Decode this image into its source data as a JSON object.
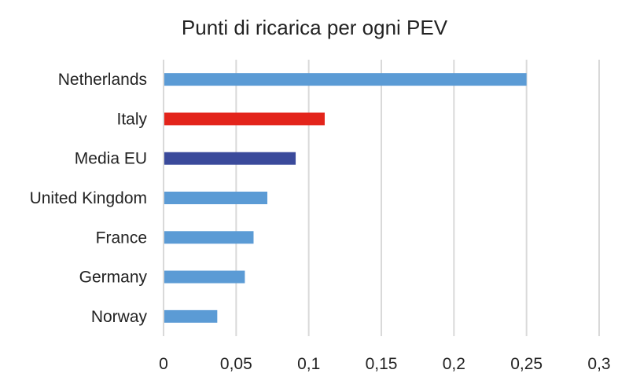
{
  "chart_data": {
    "type": "bar",
    "orientation": "horizontal",
    "title": "Punti di ricarica per ogni PEV",
    "xlabel": "",
    "ylabel": "",
    "categories": [
      "Netherlands",
      "Italy",
      "Media EU",
      "United Kingdom",
      "France",
      "Germany",
      "Norway"
    ],
    "values": [
      0.25,
      0.111,
      0.091,
      0.0715,
      0.062,
      0.056,
      0.037
    ],
    "colors": [
      "#5b9bd5",
      "#e3241b",
      "#3a4a9b",
      "#5b9bd5",
      "#5b9bd5",
      "#5b9bd5",
      "#5b9bd5"
    ],
    "xlim": [
      0,
      0.3
    ],
    "xticks": [
      0,
      0.05,
      0.1,
      0.15,
      0.2,
      0.25,
      0.3
    ],
    "xtick_labels": [
      "0",
      "0,05",
      "0,1",
      "0,15",
      "0,2",
      "0,25",
      "0,3"
    ],
    "grid": true,
    "gridline_color": "#d9d9d9"
  }
}
